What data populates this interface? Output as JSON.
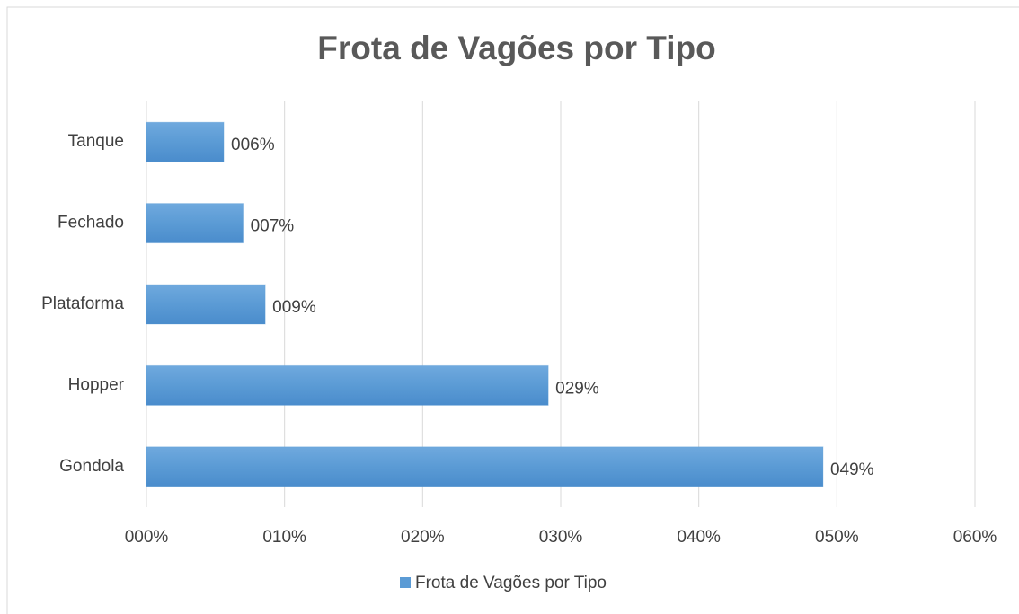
{
  "chart_data": {
    "type": "bar",
    "orientation": "horizontal",
    "title": "Frota de Vagões por Tipo",
    "categories": [
      "Gondola",
      "Hopper",
      "Plataforma",
      "Fechado",
      "Tanque"
    ],
    "series": [
      {
        "name": "Frota de Vagões por Tipo",
        "color": "#5b9bd5",
        "values": [
          49.0,
          29.1,
          8.6,
          7.0,
          5.6
        ],
        "value_labels": [
          "049%",
          "029%",
          "009%",
          "007%",
          "006%"
        ]
      }
    ],
    "xlim": [
      0,
      60
    ],
    "xticks": [
      {
        "value": 0,
        "label": "000%"
      },
      {
        "value": 10,
        "label": "010%"
      },
      {
        "value": 20,
        "label": "020%"
      },
      {
        "value": 30,
        "label": "030%"
      },
      {
        "value": 40,
        "label": "040%"
      },
      {
        "value": 50,
        "label": "050%"
      },
      {
        "value": 60,
        "label": "060%"
      }
    ],
    "grid": true,
    "legend": "bottom"
  }
}
